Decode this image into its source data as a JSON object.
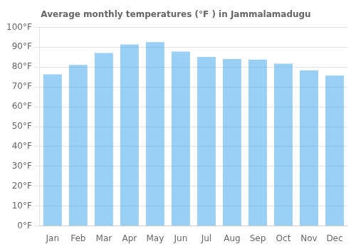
{
  "chart_data": {
    "type": "bar",
    "title": "Average monthly temperatures (°F ) in Jammalamadugu",
    "categories": [
      "Jan",
      "Feb",
      "Mar",
      "Apr",
      "May",
      "Jun",
      "Jul",
      "Aug",
      "Sep",
      "Oct",
      "Nov",
      "Dec"
    ],
    "values": [
      76.3,
      81.1,
      87.1,
      91.4,
      92.5,
      87.8,
      85.1,
      84.0,
      83.8,
      81.7,
      78.3,
      75.7
    ],
    "ylim": [
      0,
      100
    ],
    "yticks": [
      {
        "value": 0,
        "label": "0°F"
      },
      {
        "value": 10,
        "label": "10°F"
      },
      {
        "value": 20,
        "label": "20°F"
      },
      {
        "value": 30,
        "label": "30°F"
      },
      {
        "value": 40,
        "label": "40°F"
      },
      {
        "value": 50,
        "label": "50°F"
      },
      {
        "value": 60,
        "label": "60°F"
      },
      {
        "value": 70,
        "label": "70°F"
      },
      {
        "value": 80,
        "label": "80°F"
      },
      {
        "value": 90,
        "label": "90°F"
      },
      {
        "value": 100,
        "label": "100°F"
      }
    ],
    "grid": true
  }
}
